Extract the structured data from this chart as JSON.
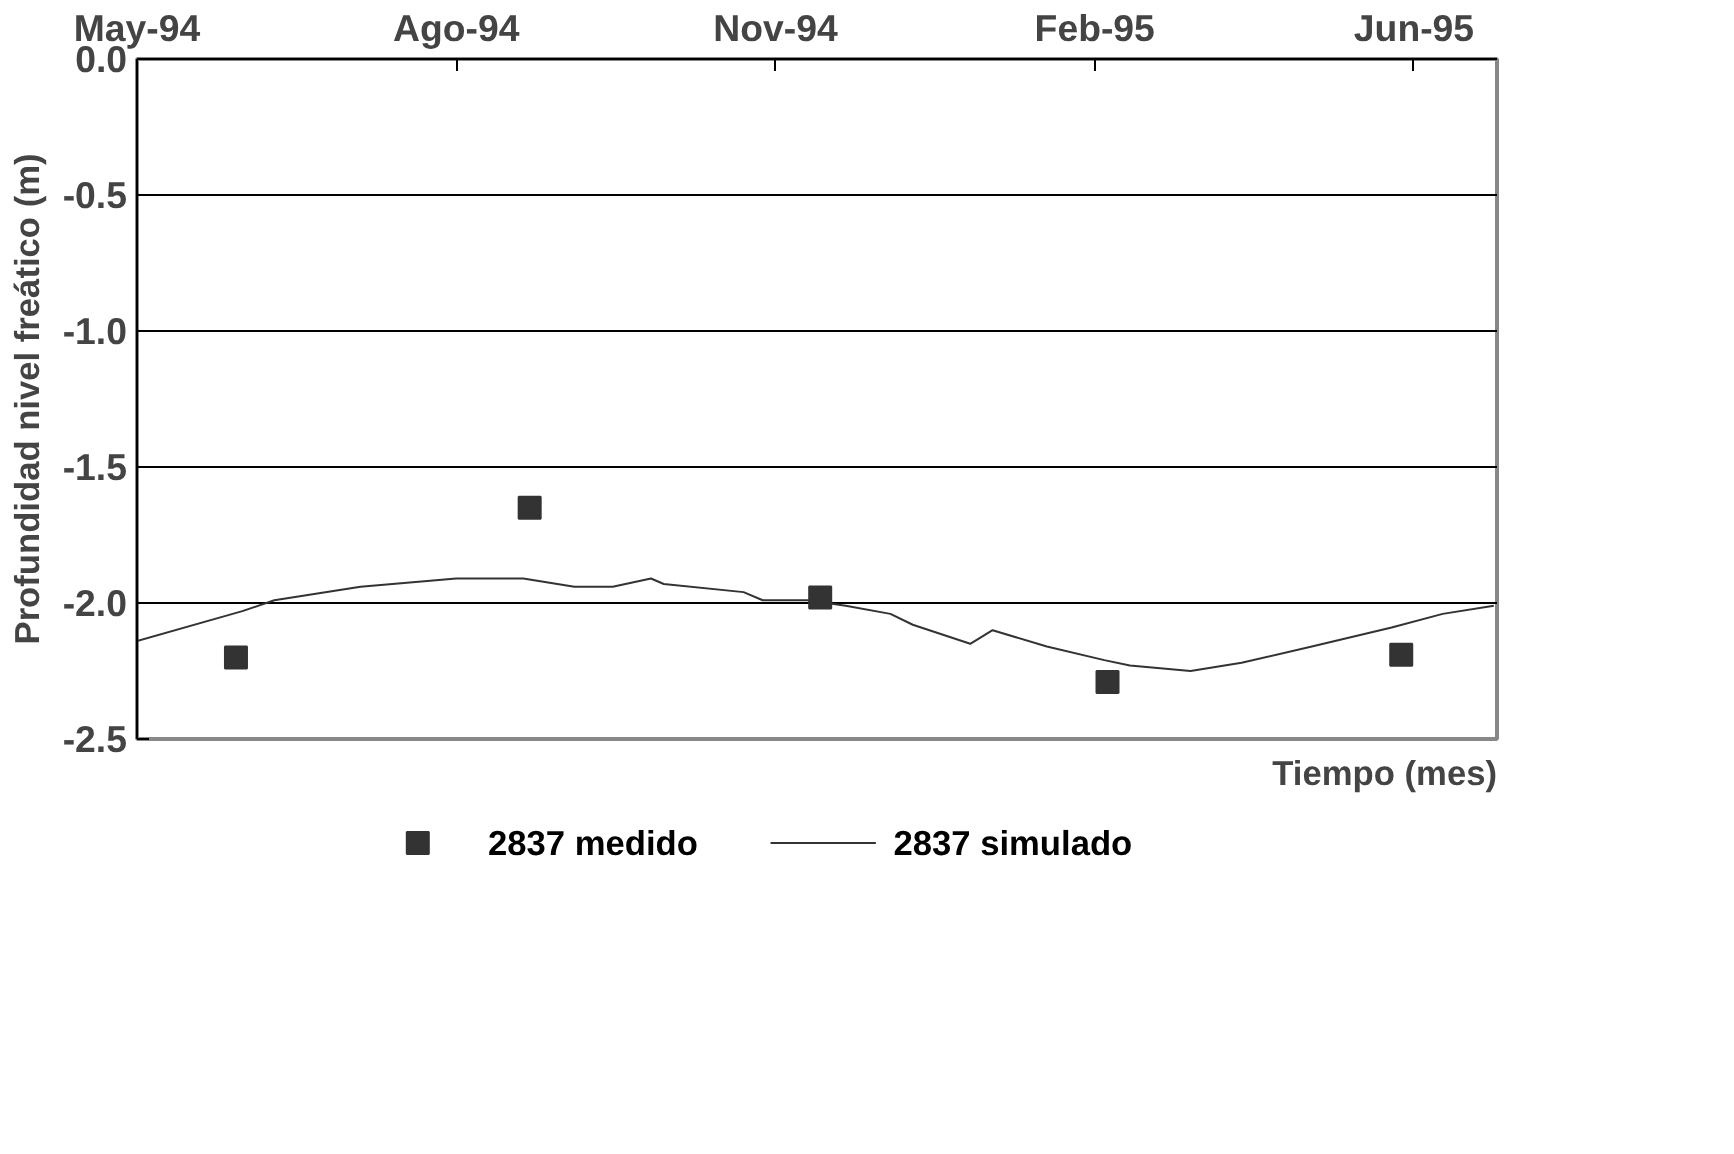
{
  "chart_data": {
    "type": "line",
    "xlabel": "Tiempo (mes)",
    "ylabel": "Profundidad nivel freático (m)",
    "xlim": [
      "1994-05-01",
      "1995-07-01"
    ],
    "xticks": [
      {
        "value": "1994-05-01",
        "label": "May-94"
      },
      {
        "value": "1994-08-09",
        "label": "Ago-94"
      },
      {
        "value": "1994-11-17",
        "label": "Nov-94"
      },
      {
        "value": "1995-02-25",
        "label": "Feb-95"
      },
      {
        "value": "1995-06-05",
        "label": "Jun-95"
      }
    ],
    "ylim": [
      -2.5,
      0
    ],
    "yticks": [
      {
        "value": -2.5,
        "label": "-2.5"
      },
      {
        "value": -2.0,
        "label": "-2.0"
      },
      {
        "value": -1.5,
        "label": "-1.5"
      },
      {
        "value": -1.0,
        "label": "-1.0"
      },
      {
        "value": -0.5,
        "label": "-0.5"
      },
      {
        "value": 0,
        "label": "0.0"
      }
    ],
    "grid": "y",
    "legend": "bottom",
    "series": [
      {
        "name": "2837 medido",
        "type": "scatter",
        "marker": "square",
        "color": "#333333",
        "x": [
          "1994-06-01",
          "1994-09-01",
          "1994-12-01",
          "1995-03-01",
          "1995-06-01"
        ],
        "values": [
          -2.2,
          -1.65,
          -1.98,
          -2.29,
          -2.19
        ]
      },
      {
        "name": "2837 simulado",
        "marker": "none",
        "color": "#333333",
        "x": [
          "1994-05-01",
          "1994-06-03",
          "1994-06-13",
          "1994-07-10",
          "1994-08-09",
          "1994-08-30",
          "1994-09-15",
          "1994-09-27",
          "1994-10-09",
          "1994-10-13",
          "1994-11-07",
          "1994-11-13",
          "1994-11-27",
          "1994-12-09",
          "1994-12-23",
          "1994-12-30",
          "1995-01-17",
          "1995-01-24",
          "1995-02-10",
          "1995-02-28",
          "1995-03-08",
          "1995-03-27",
          "1995-04-12",
          "1995-05-04",
          "1995-05-29",
          "1995-06-14",
          "1995-06-30"
        ],
        "values": [
          -2.14,
          -2.03,
          -1.99,
          -1.94,
          -1.91,
          -1.91,
          -1.94,
          -1.94,
          -1.91,
          -1.93,
          -1.96,
          -1.99,
          -1.99,
          -2.01,
          -2.04,
          -2.08,
          -2.15,
          -2.1,
          -2.16,
          -2.21,
          -2.23,
          -2.25,
          -2.22,
          -2.16,
          -2.09,
          -2.04,
          -2.01
        ]
      }
    ]
  }
}
